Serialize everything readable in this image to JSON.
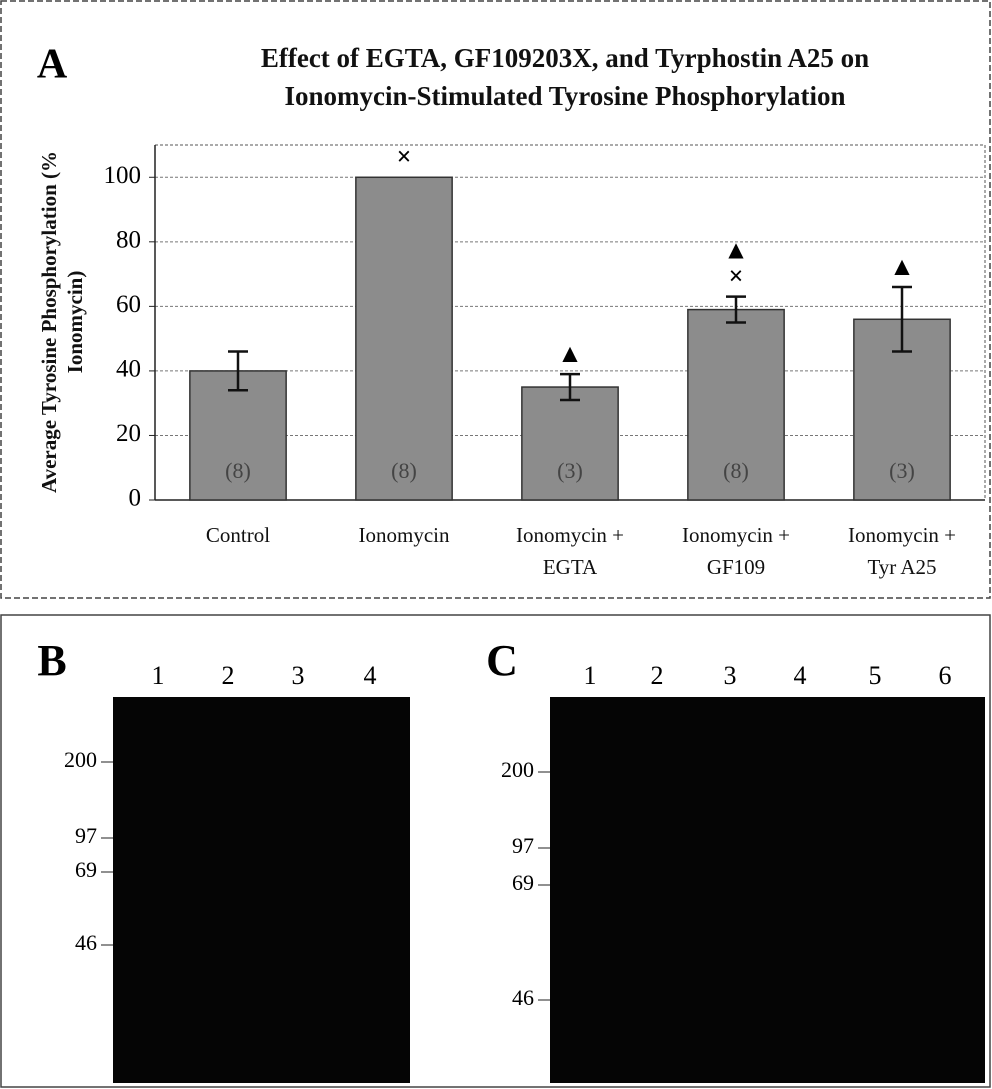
{
  "chart_data": {
    "type": "bar",
    "panel_label": "A",
    "title": "Effect of EGTA, GF109203X, and Tyrphostin A25 on Ionomycin-Stimulated Tyrosine Phosphorylation",
    "y_label": "Average Tyrosine Phosphorylation (% Ionomycin)",
    "categories": [
      "Control",
      "Ionomycin",
      "Ionomycin + EGTA",
      "Ionomycin + GF109",
      "Ionomycin + Tyr A25"
    ],
    "values": [
      40,
      100,
      35,
      59,
      56
    ],
    "errors": [
      6,
      null,
      4,
      4,
      10
    ],
    "n_labels": [
      "(8)",
      "(8)",
      "(3)",
      "(8)",
      "(3)"
    ],
    "symbols": [
      [],
      [
        "×"
      ],
      [
        "▲"
      ],
      [
        "×",
        "▲"
      ],
      [
        "▲"
      ]
    ],
    "color": "#8c8c8c",
    "ylim": [
      0,
      110
    ],
    "yticks": [
      0,
      20,
      40,
      60,
      80,
      100
    ],
    "grid": true
  },
  "blots": [
    {
      "label": "B",
      "lanes": [
        "1",
        "2",
        "3",
        "4"
      ],
      "markers": [
        200,
        97,
        69,
        46
      ]
    },
    {
      "label": "C",
      "lanes": [
        "1",
        "2",
        "3",
        "4",
        "5",
        "6"
      ],
      "markers": [
        200,
        97,
        69,
        46
      ]
    }
  ]
}
